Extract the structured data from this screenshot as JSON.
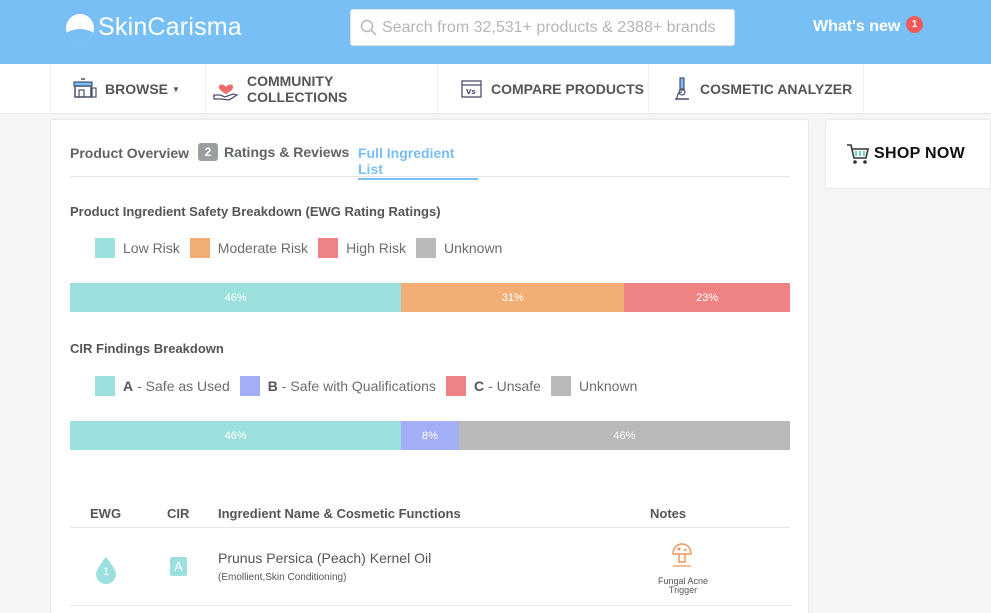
{
  "header": {
    "logo_text": "SkinCarisma",
    "search_placeholder": "Search from 32,531+ products & 2388+ brands",
    "whats_new_label": "What's new",
    "whats_new_count": "1"
  },
  "nav": {
    "items": [
      {
        "label": "BROWSE",
        "icon": "shop-stall-icon"
      },
      {
        "label": "COMMUNITY COLLECTIONS",
        "icon": "heart-hand-icon"
      },
      {
        "label": "COMPARE PRODUCTS",
        "icon": "compare-icon"
      },
      {
        "label": "COSMETIC ANALYZER",
        "icon": "microscope-icon"
      }
    ]
  },
  "tabs": {
    "overview": "Product Overview",
    "ratings_count": "2",
    "ratings": "Ratings & Reviews",
    "ingredients": "Full Ingredient List",
    "active": "Full Ingredient List"
  },
  "ewg": {
    "title": "Product Ingredient Safety Breakdown (EWG Rating Ratings)",
    "legend": [
      {
        "label": "Low Risk",
        "color": "#9be0dd"
      },
      {
        "label": "Moderate Risk",
        "color": "#f3ae75"
      },
      {
        "label": "High Risk",
        "color": "#ef8383"
      },
      {
        "label": "Unknown",
        "color": "#b9b9b9"
      }
    ],
    "segments": [
      {
        "label": "46%",
        "value": 46,
        "color": "#9be0dd"
      },
      {
        "label": "31%",
        "value": 31,
        "color": "#f3ae75"
      },
      {
        "label": "23%",
        "value": 23,
        "color": "#ef8383"
      }
    ]
  },
  "cir": {
    "title": "CIR Findings Breakdown",
    "legend": [
      {
        "code": "A",
        "label": "- Safe as Used",
        "color": "#9be0dd"
      },
      {
        "code": "B",
        "label": "- Safe with Qualifications",
        "color": "#a4aef7"
      },
      {
        "code": "C",
        "label": "- Unsafe",
        "color": "#ef8383"
      },
      {
        "code": "",
        "label": "Unknown",
        "color": "#b9b9b9"
      }
    ],
    "segments": [
      {
        "label": "46%",
        "value": 46,
        "color": "#9be0dd"
      },
      {
        "label": "8%",
        "value": 8,
        "color": "#a4aef7"
      },
      {
        "label": "46%",
        "value": 46,
        "color": "#b9b9b9"
      }
    ]
  },
  "table": {
    "headers": {
      "ewg": "EWG",
      "cir": "CIR",
      "name": "Ingredient Name & Cosmetic Functions",
      "notes": "Notes"
    },
    "rows": [
      {
        "ewg": "1",
        "cir": "A",
        "name": "Prunus Persica (Peach) Kernel Oil",
        "functions": "(Emollient,Skin Conditioning)",
        "note_icon": "mushroom-icon",
        "note_line1": "Fungal Acne",
        "note_line2": "Trigger"
      }
    ]
  },
  "shop": {
    "label": "SHOP NOW",
    "icon": "shopping-cart-icon"
  }
}
